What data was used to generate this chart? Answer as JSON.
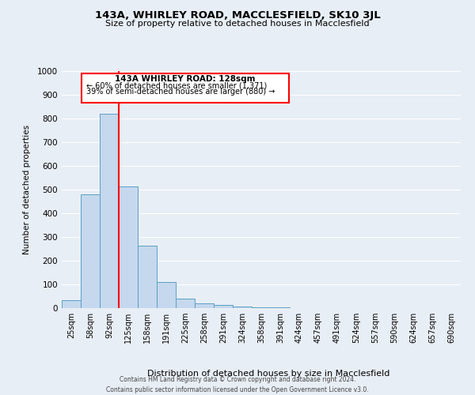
{
  "title": "143A, WHIRLEY ROAD, MACCLESFIELD, SK10 3JL",
  "subtitle": "Size of property relative to detached houses in Macclesfield",
  "xlabel": "Distribution of detached houses by size in Macclesfield",
  "ylabel": "Number of detached properties",
  "bar_labels": [
    "25sqm",
    "58sqm",
    "92sqm",
    "125sqm",
    "158sqm",
    "191sqm",
    "225sqm",
    "258sqm",
    "291sqm",
    "324sqm",
    "358sqm",
    "391sqm",
    "424sqm",
    "457sqm",
    "491sqm",
    "524sqm",
    "557sqm",
    "590sqm",
    "624sqm",
    "657sqm",
    "690sqm"
  ],
  "bar_values": [
    35,
    480,
    820,
    515,
    265,
    110,
    40,
    20,
    12,
    7,
    5,
    5,
    0,
    0,
    0,
    0,
    0,
    0,
    0,
    0,
    0
  ],
  "bar_color": "#c5d8ed",
  "bar_edge_color": "#5a9fc8",
  "property_line_x": 2.5,
  "ylim": [
    0,
    1000
  ],
  "yticks": [
    0,
    100,
    200,
    300,
    400,
    500,
    600,
    700,
    800,
    900,
    1000
  ],
  "background_color": "#e8eef5",
  "grid_color": "#ffffff",
  "annotation_title": "143A WHIRLEY ROAD: 128sqm",
  "annotation_line1": "← 60% of detached houses are smaller (1,371)",
  "annotation_line2": "39% of semi-detached houses are larger (880) →",
  "footer_line1": "Contains HM Land Registry data © Crown copyright and database right 2024.",
  "footer_line2": "Contains public sector information licensed under the Open Government Licence v3.0."
}
